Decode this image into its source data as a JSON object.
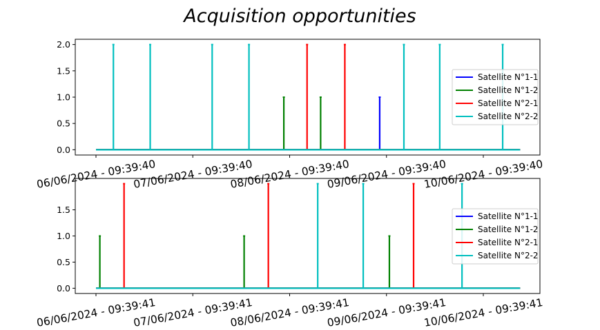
{
  "chart_data": {
    "type": "line",
    "title": "Acquisition opportunities",
    "charts": [
      {
        "id": "top",
        "xlim": [
          0,
          4.38
        ],
        "ylim": [
          -0.1,
          2.1
        ],
        "yticks": [
          0.0,
          0.5,
          1.0,
          1.5,
          2.0
        ],
        "ytick_labels": [
          "0.0",
          "0.5",
          "1.0",
          "1.5",
          "2.0"
        ],
        "xticks": [
          0,
          1,
          2,
          3,
          4
        ],
        "xtick_labels": [
          "06/06/2024 - 09:39:40",
          "07/06/2024 - 09:39:40",
          "08/06/2024 - 09:39:40",
          "09/06/2024 - 09:39:40",
          "10/06/2024 - 09:39:40"
        ],
        "legend_position": "right",
        "series": [
          {
            "name": "Satellite N°1-1",
            "color": "#0000ff",
            "spikes": [
              {
                "x": 2.93,
                "y": 1.0
              }
            ]
          },
          {
            "name": "Satellite N°1-2",
            "color": "#008000",
            "spikes": [
              {
                "x": 1.94,
                "y": 1.0
              },
              {
                "x": 2.32,
                "y": 1.0
              }
            ]
          },
          {
            "name": "Satellite N°2-1",
            "color": "#ff0000",
            "spikes": [
              {
                "x": 2.18,
                "y": 2.0
              },
              {
                "x": 2.57,
                "y": 2.0
              }
            ]
          },
          {
            "name": "Satellite N°2-2",
            "color": "#00bfbf",
            "spikes": [
              {
                "x": 0.18,
                "y": 2.0
              },
              {
                "x": 0.56,
                "y": 2.0
              },
              {
                "x": 1.2,
                "y": 2.0
              },
              {
                "x": 1.58,
                "y": 2.0
              },
              {
                "x": 3.18,
                "y": 2.0
              },
              {
                "x": 3.55,
                "y": 2.0
              },
              {
                "x": 4.2,
                "y": 2.0
              }
            ]
          }
        ]
      },
      {
        "id": "bottom",
        "xlim": [
          0,
          4.38
        ],
        "ylim": [
          -0.1,
          2.1
        ],
        "yticks": [
          0.0,
          0.5,
          1.0,
          1.5
        ],
        "ytick_labels": [
          "0.0",
          "0.5",
          "1.0",
          "1.5"
        ],
        "xticks": [
          0,
          1,
          2,
          3,
          4
        ],
        "xtick_labels": [
          "06/06/2024 - 09:39:41",
          "07/06/2024 - 09:39:41",
          "08/06/2024 - 09:39:41",
          "09/06/2024 - 09:39:41",
          "10/06/2024 - 09:39:41"
        ],
        "legend_position": "right",
        "series": [
          {
            "name": "Satellite N°1-1",
            "color": "#0000ff",
            "spikes": []
          },
          {
            "name": "Satellite N°1-2",
            "color": "#008000",
            "spikes": [
              {
                "x": 0.04,
                "y": 1.0
              },
              {
                "x": 1.53,
                "y": 1.0
              },
              {
                "x": 3.03,
                "y": 1.0
              }
            ]
          },
          {
            "name": "Satellite N°2-1",
            "color": "#ff0000",
            "spikes": [
              {
                "x": 0.29,
                "y": 2.0
              },
              {
                "x": 1.78,
                "y": 2.0
              },
              {
                "x": 3.28,
                "y": 2.0
              }
            ]
          },
          {
            "name": "Satellite N°2-2",
            "color": "#00bfbf",
            "spikes": [
              {
                "x": 2.29,
                "y": 2.0
              },
              {
                "x": 2.76,
                "y": 2.0
              },
              {
                "x": 3.78,
                "y": 2.0
              }
            ]
          }
        ]
      }
    ]
  }
}
